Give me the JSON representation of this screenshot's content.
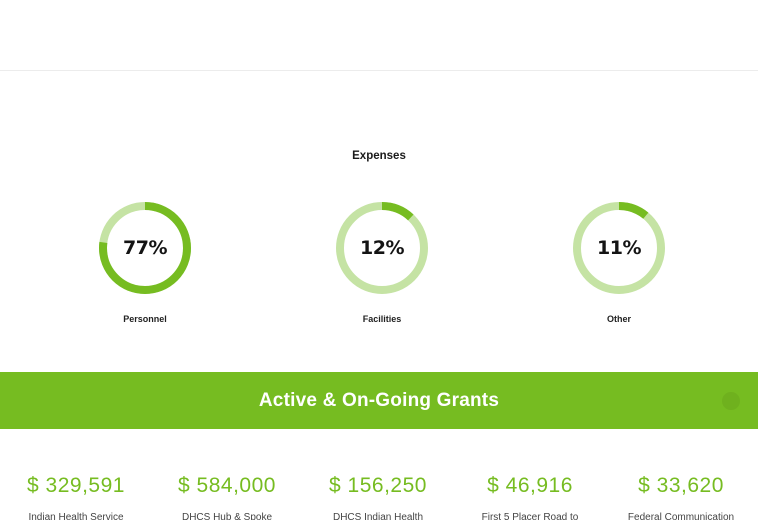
{
  "expenses": {
    "title": "Expenses",
    "items": [
      {
        "label": "Personnel",
        "value_text": "77%",
        "fraction": 0.77
      },
      {
        "label": "Facilities",
        "value_text": "12%",
        "fraction": 0.12
      },
      {
        "label": "Other",
        "value_text": "11%",
        "fraction": 0.11
      }
    ]
  },
  "grants": {
    "title": "Active & On-Going Grants",
    "carousel_control_icon": "carousel-nav-icon",
    "items": [
      {
        "amount": "$ 329,591",
        "name": "Indian Health Service"
      },
      {
        "amount": "$ 584,000",
        "name": "DHCS Hub & Spoke"
      },
      {
        "amount": "$ 156,250",
        "name": "DHCS Indian Health"
      },
      {
        "amount": "$ 46,916",
        "name": "First 5 Placer Road to"
      },
      {
        "amount": "$ 33,620",
        "name": "Federal Communication"
      }
    ]
  },
  "colors": {
    "accent": "#76bc21",
    "ring_track": "#c5e3a4",
    "ring_fill": "#76bc21"
  }
}
